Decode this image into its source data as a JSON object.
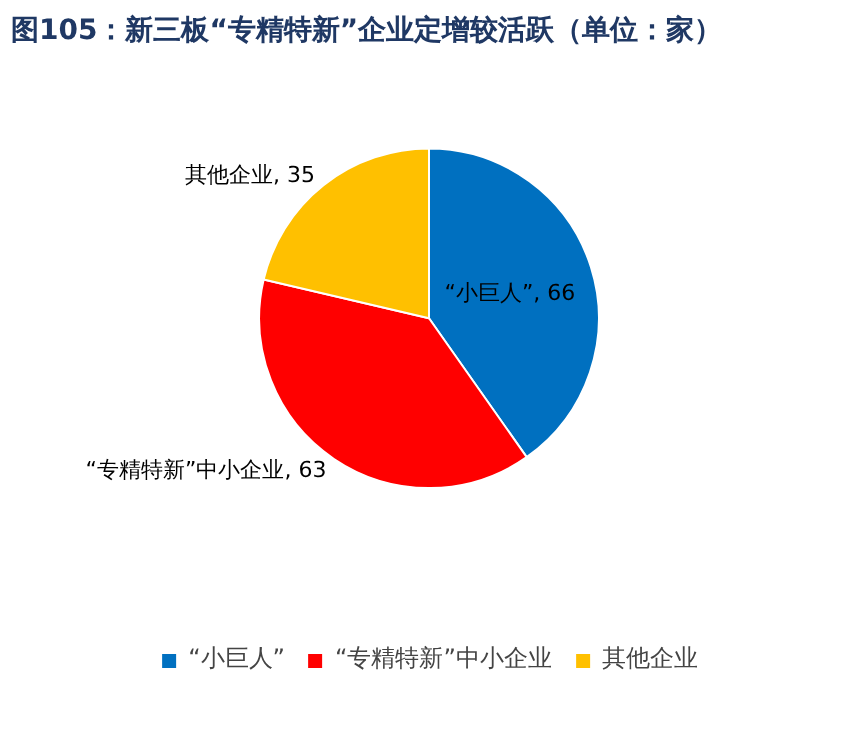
{
  "chart_data": {
    "type": "pie",
    "title": "图105：新三板“专精特新”企业定增较活跃（单位：家）",
    "categories": [
      "“小巨人”",
      "“专精特新”中小企业",
      "其他企业"
    ],
    "values": [
      66,
      63,
      35
    ],
    "colors": [
      "#0070c0",
      "#ff0000",
      "#ffc000"
    ],
    "value_labels": [
      "“小巨人”, 66",
      "“专精特新”中小企业, 63",
      "其他企业, 35"
    ],
    "legend": "bottom"
  }
}
